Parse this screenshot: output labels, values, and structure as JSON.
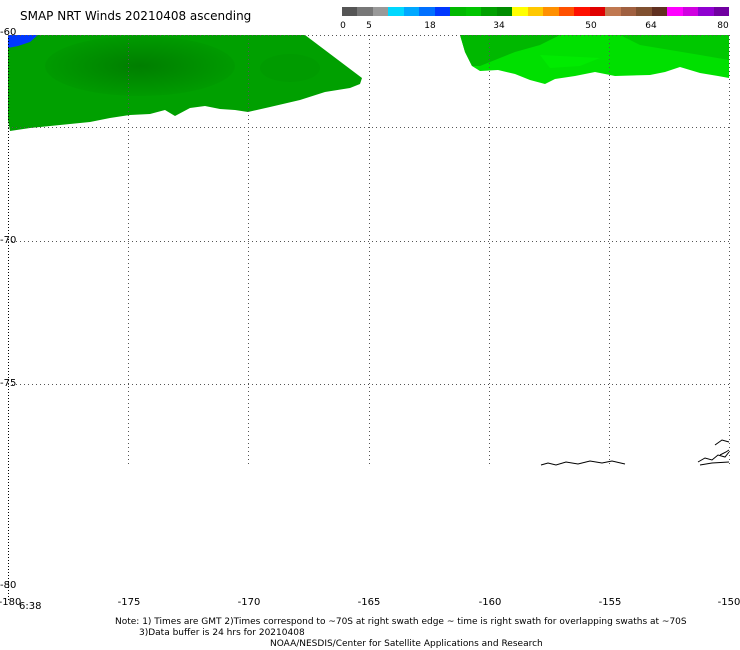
{
  "title": "SMAP NRT Winds 20210408 ascending",
  "colorbar": {
    "ticks": [
      "0",
      "5",
      "18",
      "34",
      "50",
      "64",
      "80"
    ],
    "segments": [
      {
        "color": "#555555"
      },
      {
        "color": "#777777"
      },
      {
        "color": "#999999"
      },
      {
        "color": "#00d8ff"
      },
      {
        "color": "#00a8ff"
      },
      {
        "color": "#0070ff"
      },
      {
        "color": "#0038ff"
      },
      {
        "color": "#00b800"
      },
      {
        "color": "#00c400"
      },
      {
        "color": "#00a000"
      },
      {
        "color": "#008c00"
      },
      {
        "color": "#ffff00"
      },
      {
        "color": "#ffc800"
      },
      {
        "color": "#ff9000"
      },
      {
        "color": "#ff5000"
      },
      {
        "color": "#ff1000"
      },
      {
        "color": "#e00000"
      },
      {
        "color": "#c07850"
      },
      {
        "color": "#a06040"
      },
      {
        "color": "#805030"
      },
      {
        "color": "#603020"
      },
      {
        "color": "#ff00ff"
      },
      {
        "color": "#d000e0"
      },
      {
        "color": "#9000d0"
      },
      {
        "color": "#7000a0"
      }
    ]
  },
  "lat_labels": [
    "-60",
    "-70",
    "-75",
    "-80"
  ],
  "lon_labels": [
    "-180",
    "-175",
    "-170",
    "-165",
    "-160",
    "-155",
    "-150"
  ],
  "corner_time": "6:38",
  "notes": {
    "line1": "Note: 1) Times are GMT 2)Times correspond to ~70S at right swath edge ~ time is right swath for overlapping swaths at ~70S",
    "line2": "3)Data buffer is 24 hrs for 20210408",
    "line3": "NOAA/NESDIS/Center for Satellite Applications and Research"
  },
  "colors": {
    "wind_dark_green": "#008c00",
    "wind_green": "#00a000",
    "wind_bright_green": "#00e000",
    "wind_blue": "#0038ff",
    "grid": "#666666",
    "coast": "#000000"
  }
}
